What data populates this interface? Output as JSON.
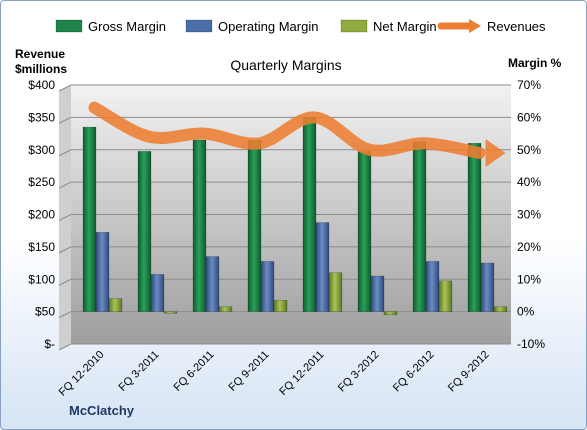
{
  "chart_data": {
    "type": "bar",
    "title": "Quarterly Margins",
    "company": "McClatchy",
    "categories": [
      "FQ 12-2010",
      "FQ 3-2011",
      "FQ 6-2011",
      "FQ 9-2011",
      "FQ 12-2011",
      "FQ 3-2012",
      "FQ 6-2012",
      "FQ 9-2012"
    ],
    "series": [
      {
        "name": "Gross Margin",
        "axis": "right",
        "color": "#1e8449",
        "values": [
          57.0,
          49.5,
          53.0,
          53.0,
          60.0,
          49.5,
          52.5,
          52.0
        ]
      },
      {
        "name": "Operating Margin",
        "axis": "right",
        "color": "#4a6ea8",
        "values": [
          24.5,
          11.5,
          17.0,
          15.5,
          27.5,
          11.0,
          15.5,
          15.0
        ]
      },
      {
        "name": "Net Margin",
        "axis": "right",
        "color": "#8fac3c",
        "values": [
          4.0,
          -0.5,
          1.5,
          3.5,
          12.0,
          -1.0,
          9.5,
          1.5
        ]
      },
      {
        "name": "Revenues",
        "axis": "left",
        "type": "line",
        "color": "#ed7d31",
        "values": [
          365,
          320,
          325,
          310,
          350,
          300,
          310,
          295
        ]
      }
    ],
    "left_axis": {
      "label_line1": "Revenue",
      "label_line2": "$millions",
      "ticks": [
        "$400",
        "$350",
        "$300",
        "$250",
        "$200",
        "$150",
        "$100",
        "$50",
        "$-"
      ],
      "ylim": [
        0,
        400
      ]
    },
    "right_axis": {
      "label": "Margin %",
      "ticks": [
        "70%",
        "60%",
        "50%",
        "40%",
        "30%",
        "20%",
        "10%",
        "0%",
        "-10%"
      ],
      "ylim": [
        -10,
        70
      ]
    },
    "legend_position": "top",
    "grid": true
  }
}
